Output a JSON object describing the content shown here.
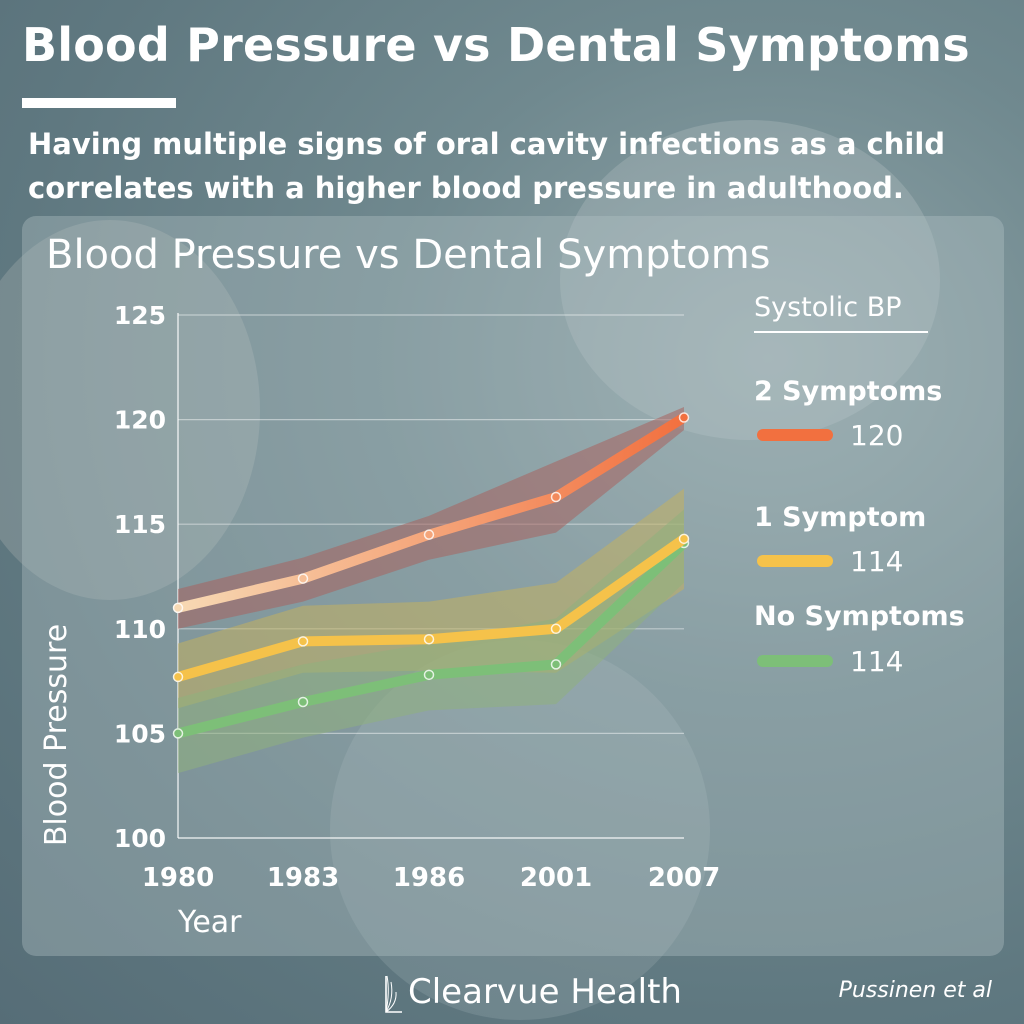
{
  "header": {
    "title": "Blood Pressure vs Dental Symptoms",
    "subtitle": "Having multiple signs of oral cavity infections as a child correlates with a higher blood pressure in adulthood."
  },
  "legend": {
    "heading": "Systolic BP",
    "items": [
      {
        "label": "2 Symptoms",
        "value": "120",
        "color": "#f2703f"
      },
      {
        "label": "1 Symptom",
        "value": "114",
        "color": "#f5c24a"
      },
      {
        "label": "No Symptoms",
        "value": "114",
        "color": "#7dbf78"
      }
    ]
  },
  "footer": {
    "brand": "Clearvue Health",
    "citation": "Pussinen et al"
  },
  "chart_data": {
    "type": "line",
    "title": "Blood Pressure vs Dental Symptoms",
    "xlabel": "Year",
    "ylabel": "Blood Pressure",
    "categories": [
      "1980",
      "1983",
      "1986",
      "2001",
      "2007"
    ],
    "ylim": [
      100,
      125
    ],
    "yticks": [
      100,
      105,
      110,
      115,
      120,
      125
    ],
    "grid": true,
    "legend_position": "right",
    "series": [
      {
        "name": "2 Symptoms",
        "values": [
          111.0,
          112.4,
          114.5,
          116.3,
          120.1
        ],
        "lower": [
          110.0,
          111.3,
          113.3,
          114.6,
          119.5
        ],
        "upper": [
          111.9,
          113.4,
          115.4,
          118.0,
          120.6
        ],
        "color": "#f2703f",
        "color_start": "#f7d9b4",
        "band_color": "#a8625e"
      },
      {
        "name": "1 Symptom",
        "values": [
          107.7,
          109.4,
          109.5,
          110.0,
          114.3
        ],
        "lower": [
          106.2,
          107.9,
          108.0,
          107.9,
          111.9
        ],
        "upper": [
          109.3,
          111.1,
          111.3,
          112.2,
          116.7
        ],
        "color": "#f5c24a",
        "color_start": "#f5c24a",
        "band_color": "#c2b060"
      },
      {
        "name": "No Symptoms",
        "values": [
          105.0,
          106.5,
          107.8,
          108.3,
          114.1
        ],
        "lower": [
          103.1,
          104.8,
          106.1,
          106.4,
          112.2
        ],
        "upper": [
          106.7,
          108.3,
          109.3,
          110.5,
          115.7
        ],
        "color": "#7dbf78",
        "color_start": "#7dbf78",
        "band_color": "#8fb07e"
      }
    ]
  }
}
